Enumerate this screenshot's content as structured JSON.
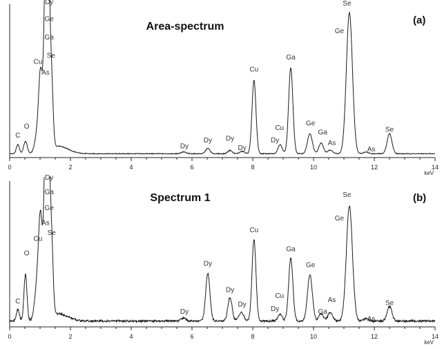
{
  "chart_data": [
    {
      "type": "line",
      "title": "Area-spectrum",
      "panel_label": "(a)",
      "xlabel": "keV",
      "xlim": [
        0,
        14
      ],
      "x_ticks": [
        "0",
        "2",
        "4",
        "6",
        "8",
        "10",
        "12",
        "14"
      ],
      "ylim": [
        0,
        100
      ],
      "grid": false,
      "baseline": 2.5,
      "peaks": [
        {
          "x": 0.27,
          "h": 6,
          "w": 0.05
        },
        {
          "x": 0.52,
          "h": 8,
          "w": 0.06
        },
        {
          "x": 0.93,
          "h": 15,
          "w": 0.09
        },
        {
          "x": 1.02,
          "h": 45,
          "w": 0.06
        },
        {
          "x": 1.19,
          "h": 130,
          "w": 0.06
        },
        {
          "x": 1.28,
          "h": 95,
          "w": 0.05
        },
        {
          "x": 1.38,
          "h": 42,
          "w": 0.05
        },
        {
          "x": 5.72,
          "h": 1.2,
          "w": 0.08
        },
        {
          "x": 6.52,
          "h": 3.5,
          "w": 0.07
        },
        {
          "x": 7.25,
          "h": 2.2,
          "w": 0.07
        },
        {
          "x": 7.65,
          "h": 1.5,
          "w": 0.08
        },
        {
          "x": 8.04,
          "h": 48,
          "w": 0.065
        },
        {
          "x": 8.9,
          "h": 6,
          "w": 0.07
        },
        {
          "x": 9.25,
          "h": 56,
          "w": 0.07
        },
        {
          "x": 9.88,
          "h": 13,
          "w": 0.08
        },
        {
          "x": 10.25,
          "h": 7,
          "w": 0.075
        },
        {
          "x": 10.55,
          "h": 2.5,
          "w": 0.08
        },
        {
          "x": 11.18,
          "h": 92,
          "w": 0.1
        },
        {
          "x": 11.72,
          "h": 1.2,
          "w": 0.08
        },
        {
          "x": 12.5,
          "h": 13,
          "w": 0.08
        }
      ],
      "element_labels": [
        {
          "text": "C",
          "x": 0.27,
          "y": 13
        },
        {
          "text": "O",
          "x": 0.56,
          "y": 19
        },
        {
          "text": "Cu",
          "x": 0.93,
          "y": 61
        },
        {
          "text": "As",
          "x": 1.18,
          "y": 54
        },
        {
          "text": "Dy",
          "x": 1.3,
          "y": 100
        },
        {
          "text": "Ge",
          "x": 1.3,
          "y": 89
        },
        {
          "text": "Ga",
          "x": 1.3,
          "y": 77
        },
        {
          "text": "Se",
          "x": 1.36,
          "y": 65
        },
        {
          "text": "Dy",
          "x": 5.75,
          "y": 6
        },
        {
          "text": "Dy",
          "x": 6.52,
          "y": 10
        },
        {
          "text": "Dy",
          "x": 7.25,
          "y": 11
        },
        {
          "text": "Dy",
          "x": 7.65,
          "y": 5
        },
        {
          "text": "Cu",
          "x": 8.04,
          "y": 56
        },
        {
          "text": "Cu",
          "x": 8.88,
          "y": 18
        },
        {
          "text": "Dy",
          "x": 8.73,
          "y": 10
        },
        {
          "text": "Ga",
          "x": 9.25,
          "y": 64
        },
        {
          "text": "Ge",
          "x": 9.9,
          "y": 21
        },
        {
          "text": "Ga",
          "x": 10.3,
          "y": 15
        },
        {
          "text": "As",
          "x": 10.6,
          "y": 8
        },
        {
          "text": "Se",
          "x": 11.1,
          "y": 99
        },
        {
          "text": "Ge",
          "x": 10.85,
          "y": 81
        },
        {
          "text": "As",
          "x": 11.9,
          "y": 4
        },
        {
          "text": "Se",
          "x": 12.5,
          "y": 17
        }
      ]
    },
    {
      "type": "line",
      "title": "Spectrum 1",
      "panel_label": "(b)",
      "xlabel": "keV",
      "xlim": [
        0,
        14
      ],
      "x_ticks": [
        "0",
        "2",
        "4",
        "6",
        "8",
        "10",
        "12",
        "14"
      ],
      "ylim": [
        0,
        100
      ],
      "grid": false,
      "baseline": 4,
      "peaks": [
        {
          "x": 0.27,
          "h": 8,
          "w": 0.05
        },
        {
          "x": 0.52,
          "h": 32,
          "w": 0.05
        },
        {
          "x": 0.93,
          "h": 30,
          "w": 0.09
        },
        {
          "x": 1.02,
          "h": 55,
          "w": 0.06
        },
        {
          "x": 1.19,
          "h": 130,
          "w": 0.06
        },
        {
          "x": 1.28,
          "h": 95,
          "w": 0.05
        },
        {
          "x": 1.38,
          "h": 50,
          "w": 0.05
        },
        {
          "x": 5.72,
          "h": 2,
          "w": 0.08
        },
        {
          "x": 6.52,
          "h": 33,
          "w": 0.07
        },
        {
          "x": 7.25,
          "h": 16,
          "w": 0.07
        },
        {
          "x": 7.62,
          "h": 6,
          "w": 0.08
        },
        {
          "x": 8.04,
          "h": 56,
          "w": 0.065
        },
        {
          "x": 8.9,
          "h": 5,
          "w": 0.07
        },
        {
          "x": 9.25,
          "h": 43,
          "w": 0.07
        },
        {
          "x": 9.88,
          "h": 32,
          "w": 0.08
        },
        {
          "x": 10.25,
          "h": 5,
          "w": 0.075
        },
        {
          "x": 10.55,
          "h": 6,
          "w": 0.08
        },
        {
          "x": 11.18,
          "h": 79,
          "w": 0.1
        },
        {
          "x": 11.72,
          "h": 1.5,
          "w": 0.08
        },
        {
          "x": 12.5,
          "h": 10,
          "w": 0.08
        }
      ],
      "element_labels": [
        {
          "text": "C",
          "x": 0.27,
          "y": 16
        },
        {
          "text": "O",
          "x": 0.56,
          "y": 49
        },
        {
          "text": "Cu",
          "x": 0.93,
          "y": 59
        },
        {
          "text": "As",
          "x": 1.18,
          "y": 70
        },
        {
          "text": "Dy",
          "x": 1.3,
          "y": 101
        },
        {
          "text": "Ga",
          "x": 1.3,
          "y": 91
        },
        {
          "text": "Ge",
          "x": 1.3,
          "y": 80
        },
        {
          "text": "Se",
          "x": 1.38,
          "y": 63
        },
        {
          "text": "Dy",
          "x": 5.75,
          "y": 9
        },
        {
          "text": "Dy",
          "x": 6.52,
          "y": 42
        },
        {
          "text": "Dy",
          "x": 7.25,
          "y": 24
        },
        {
          "text": "Dy",
          "x": 7.65,
          "y": 14
        },
        {
          "text": "Cu",
          "x": 8.04,
          "y": 65
        },
        {
          "text": "Cu",
          "x": 8.88,
          "y": 20
        },
        {
          "text": "Dy",
          "x": 8.73,
          "y": 11
        },
        {
          "text": "Ga",
          "x": 9.25,
          "y": 52
        },
        {
          "text": "Ge",
          "x": 9.9,
          "y": 41
        },
        {
          "text": "Ga",
          "x": 10.3,
          "y": 9
        },
        {
          "text": "As",
          "x": 10.6,
          "y": 17
        },
        {
          "text": "Se",
          "x": 11.1,
          "y": 89
        },
        {
          "text": "Ge",
          "x": 10.85,
          "y": 73
        },
        {
          "text": "As",
          "x": 11.9,
          "y": 4
        },
        {
          "text": "Se",
          "x": 12.5,
          "y": 15
        }
      ]
    }
  ]
}
